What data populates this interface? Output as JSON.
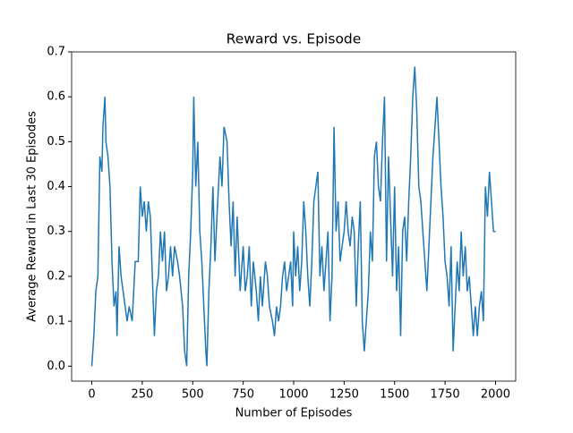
{
  "chart_data": {
    "type": "line",
    "title": "Reward vs. Episode",
    "x_label": "Number of Episodes",
    "y_label": "Average Reward in Last 30 Episodes",
    "xlim": [
      -100,
      2100
    ],
    "ylim": [
      -0.0333,
      0.7
    ],
    "xticks": [
      0,
      250,
      500,
      750,
      1000,
      1250,
      1500,
      1750,
      2000
    ],
    "yticks": [
      {
        "value": 0,
        "label": "0.0"
      },
      0.1,
      0.2,
      0.3,
      0.4,
      0.5,
      0.6,
      0.7
    ],
    "series": [
      {
        "color": "#1f77b4",
        "x": [
          0,
          10,
          20,
          30,
          40,
          50,
          55,
          60,
          65,
          70,
          80,
          90,
          100,
          110,
          120,
          125,
          135,
          145,
          155,
          165,
          175,
          185,
          200,
          215,
          230,
          240,
          250,
          260,
          270,
          280,
          290,
          300,
          310,
          320,
          330,
          340,
          350,
          360,
          370,
          380,
          390,
          400,
          410,
          425,
          435,
          450,
          460,
          470,
          480,
          490,
          500,
          505,
          515,
          525,
          535,
          545,
          555,
          565,
          570,
          580,
          590,
          600,
          610,
          620,
          635,
          645,
          655,
          670,
          680,
          690,
          700,
          710,
          720,
          735,
          750,
          760,
          770,
          780,
          790,
          800,
          815,
          825,
          835,
          845,
          860,
          870,
          880,
          895,
          905,
          915,
          925,
          935,
          945,
          955,
          965,
          975,
          985,
          995,
          1000,
          1010,
          1020,
          1030,
          1040,
          1050,
          1060,
          1070,
          1080,
          1090,
          1100,
          1110,
          1120,
          1130,
          1140,
          1150,
          1160,
          1170,
          1180,
          1190,
          1200,
          1210,
          1220,
          1230,
          1240,
          1250,
          1260,
          1270,
          1280,
          1290,
          1300,
          1310,
          1320,
          1330,
          1340,
          1350,
          1360,
          1370,
          1380,
          1390,
          1400,
          1410,
          1420,
          1430,
          1440,
          1450,
          1460,
          1470,
          1480,
          1490,
          1500,
          1510,
          1520,
          1530,
          1540,
          1550,
          1560,
          1570,
          1580,
          1590,
          1600,
          1610,
          1620,
          1630,
          1640,
          1650,
          1660,
          1670,
          1680,
          1690,
          1700,
          1710,
          1720,
          1730,
          1740,
          1750,
          1760,
          1770,
          1780,
          1790,
          1800,
          1810,
          1820,
          1830,
          1840,
          1850,
          1860,
          1870,
          1880,
          1890,
          1900,
          1910,
          1920,
          1930,
          1940,
          1950,
          1960,
          1970,
          1980,
          1990,
          2000
        ],
        "values": [
          0,
          0.067,
          0.167,
          0.2,
          0.467,
          0.433,
          0.533,
          0.567,
          0.6,
          0.5,
          0.467,
          0.4,
          0.233,
          0.133,
          0.167,
          0.067,
          0.267,
          0.2,
          0.167,
          0.133,
          0.1,
          0.133,
          0.1,
          0.233,
          0.233,
          0.4,
          0.333,
          0.367,
          0.3,
          0.367,
          0.333,
          0.2,
          0.067,
          0.167,
          0.2,
          0.3,
          0.233,
          0.3,
          0.167,
          0.2,
          0.267,
          0.2,
          0.267,
          0.233,
          0.2,
          0.133,
          0.033,
          0,
          0.2,
          0.3,
          0.433,
          0.6,
          0.4,
          0.5,
          0.3,
          0.233,
          0.133,
          0.033,
          0,
          0.167,
          0.267,
          0.4,
          0.233,
          0.333,
          0.467,
          0.4,
          0.533,
          0.5,
          0.367,
          0.267,
          0.367,
          0.2,
          0.333,
          0.167,
          0.267,
          0.167,
          0.2,
          0.267,
          0.133,
          0.233,
          0.167,
          0.1,
          0.2,
          0.133,
          0.233,
          0.2,
          0.133,
          0.1,
          0.067,
          0.133,
          0.1,
          0.133,
          0.2,
          0.233,
          0.167,
          0.2,
          0.233,
          0.133,
          0.3,
          0.2,
          0.267,
          0.167,
          0.233,
          0.367,
          0.3,
          0.2,
          0.133,
          0.233,
          0.367,
          0.4,
          0.433,
          0.2,
          0.267,
          0.167,
          0.233,
          0.3,
          0.1,
          0.2,
          0.533,
          0.3,
          0.367,
          0.233,
          0.267,
          0.3,
          0.367,
          0.3,
          0.267,
          0.333,
          0.3,
          0.133,
          0.267,
          0.367,
          0.1,
          0.033,
          0.1,
          0.167,
          0.3,
          0.233,
          0.467,
          0.5,
          0.4,
          0.367,
          0.5,
          0.6,
          0.233,
          0.467,
          0.333,
          0.2,
          0.4,
          0.167,
          0.267,
          0.067,
          0.3,
          0.333,
          0.233,
          0.367,
          0.467,
          0.6,
          0.667,
          0.567,
          0.4,
          0.367,
          0.3,
          0.233,
          0.167,
          0.267,
          0.367,
          0.467,
          0.533,
          0.6,
          0.5,
          0.4,
          0.333,
          0.233,
          0.2,
          0.133,
          0.267,
          0.033,
          0.133,
          0.233,
          0.167,
          0.3,
          0.2,
          0.267,
          0.167,
          0.2,
          0.133,
          0.067,
          0.133,
          0.067,
          0.133,
          0.167,
          0.1,
          0.4,
          0.333,
          0.433,
          0.367,
          0.3,
          0.3
        ]
      }
    ]
  }
}
